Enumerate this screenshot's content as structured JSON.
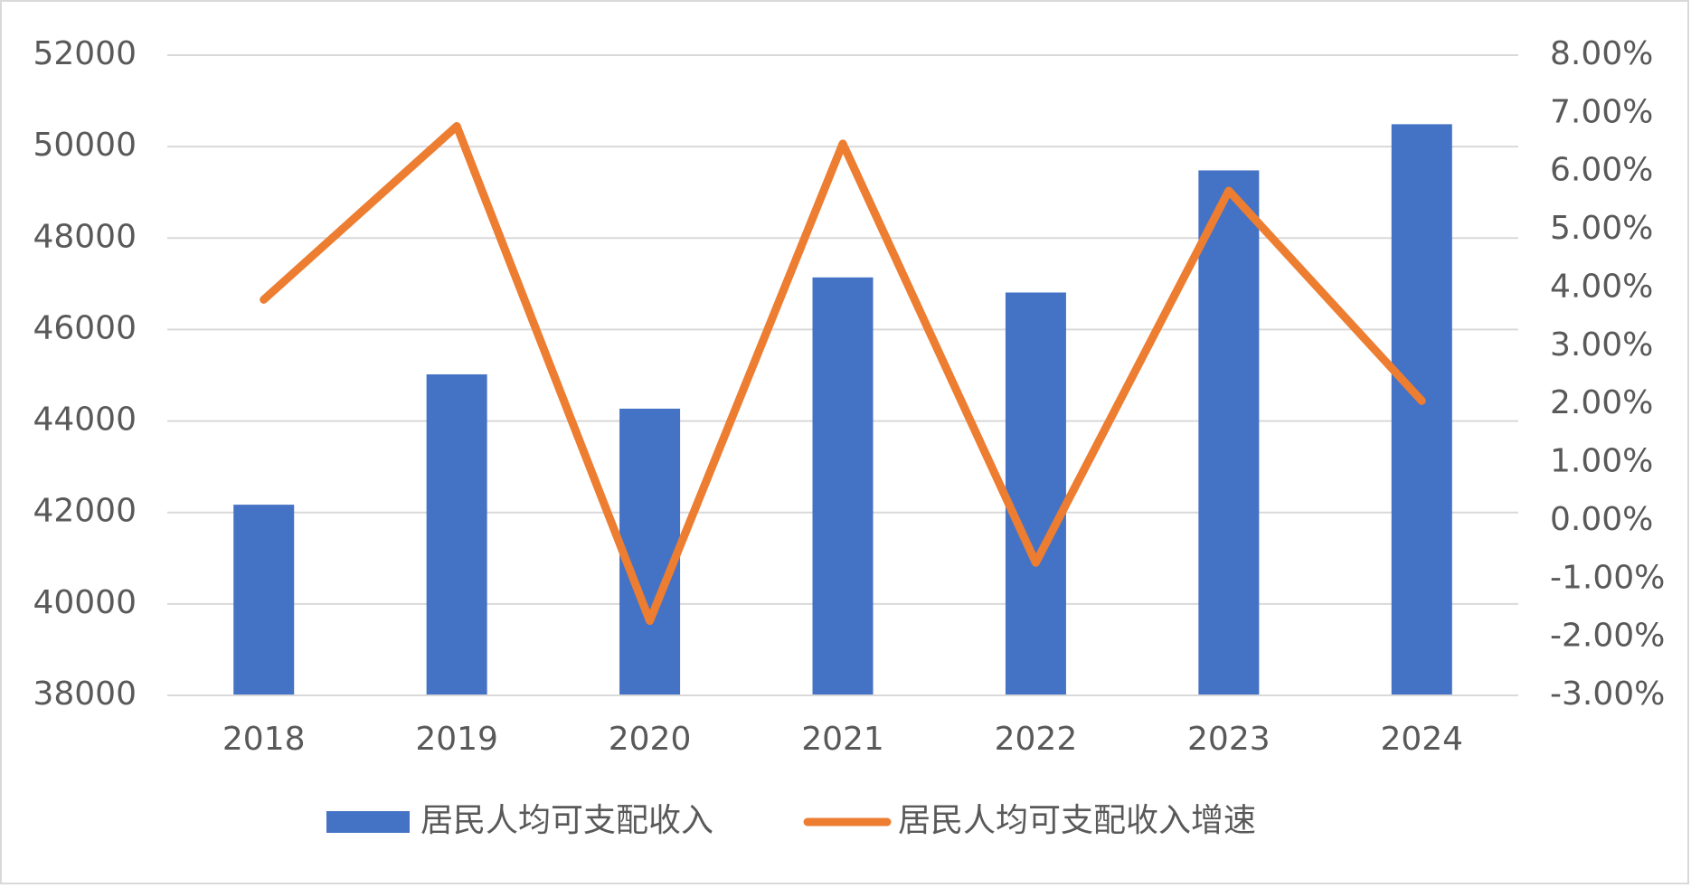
{
  "chart_data": {
    "type": "bar-line",
    "categories": [
      "2018",
      "2019",
      "2020",
      "2021",
      "2022",
      "2023",
      "2024"
    ],
    "series": [
      {
        "name": "居民人均可支配收入",
        "type": "bar",
        "color": "#4472c4",
        "values": [
          42170,
          45020,
          44270,
          47140,
          46810,
          49480,
          50490
        ]
      },
      {
        "name": "居民人均可支配收入增速",
        "type": "line",
        "color": "#ed7d31",
        "axis": "y2",
        "values": [
          3.8,
          6.78,
          -1.72,
          6.48,
          -0.72,
          5.67,
          2.06
        ]
      }
    ],
    "ylim": [
      38000,
      52000
    ],
    "yticks": [
      38000,
      40000,
      42000,
      44000,
      46000,
      48000,
      50000,
      52000
    ],
    "y2lim": [
      -3,
      8
    ],
    "y2ticks": [
      {
        "value": -3,
        "label": "-3.00%"
      },
      {
        "value": -2,
        "label": "-2.00%"
      },
      {
        "value": -1,
        "label": "-1.00%"
      },
      {
        "value": 0,
        "label": "0.00%"
      },
      {
        "value": 1,
        "label": "1.00%"
      },
      {
        "value": 2,
        "label": "2.00%"
      },
      {
        "value": 3,
        "label": "3.00%"
      },
      {
        "value": 4,
        "label": "4.00%"
      },
      {
        "value": 5,
        "label": "5.00%"
      },
      {
        "value": 6,
        "label": "6.00%"
      },
      {
        "value": 7,
        "label": "7.00%"
      },
      {
        "value": 8,
        "label": "8.00%"
      }
    ],
    "grid": true,
    "legend": "bottom"
  }
}
